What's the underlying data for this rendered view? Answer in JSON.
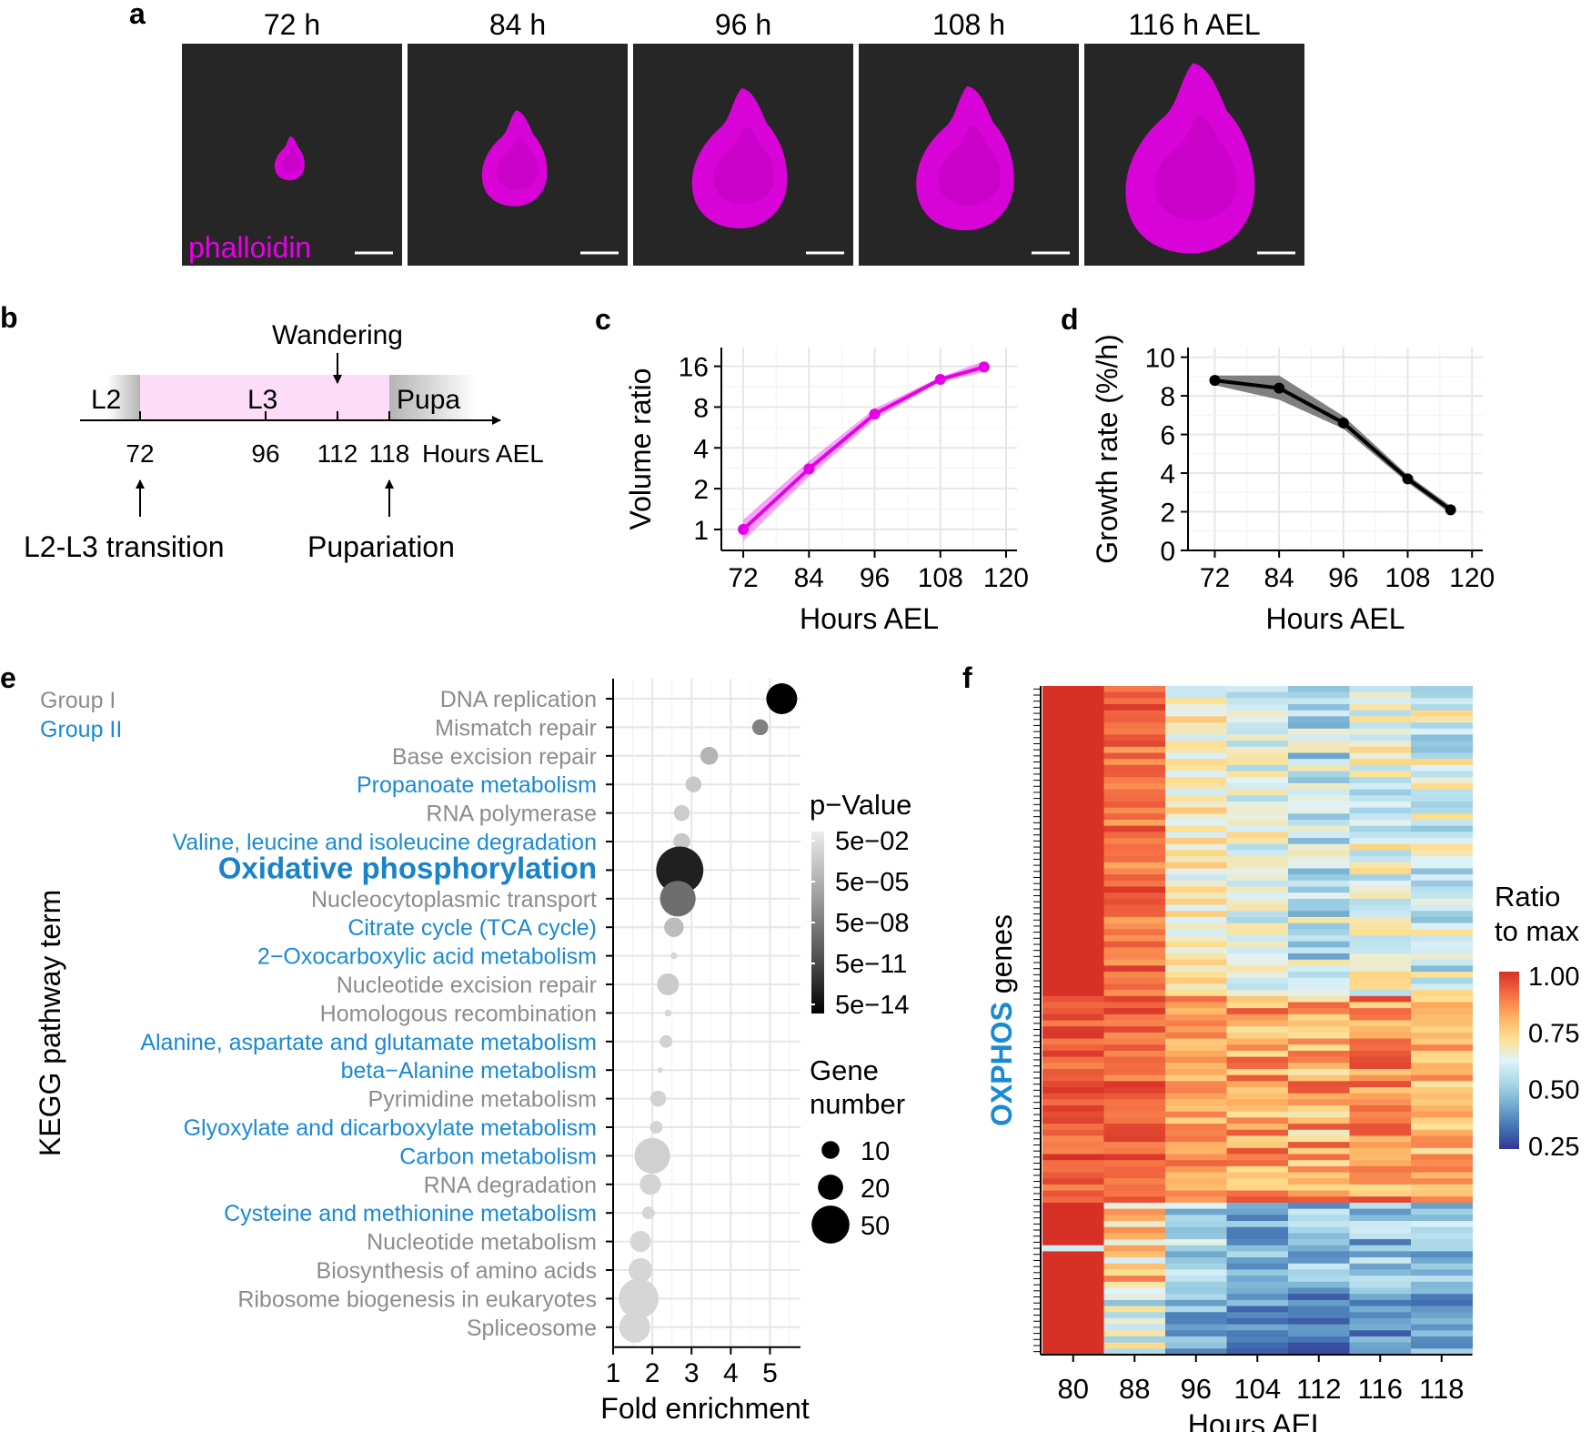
{
  "panel_a": {
    "letter": "a",
    "timepoints": [
      "72 h",
      "84 h",
      "96 h",
      "108 h",
      "116 h AEL"
    ],
    "stain_label": "phalloidin",
    "colors": {
      "stain": "#e600e6",
      "background": "#262626"
    }
  },
  "panel_b": {
    "letter": "b",
    "stages": [
      "L2",
      "L3",
      "Pupa"
    ],
    "wandering": "Wandering",
    "ticks": [
      "72",
      "96",
      "112",
      "118"
    ],
    "axis_label": "Hours AEL",
    "events": [
      "L2-L3 transition",
      "Pupariation"
    ],
    "colors": {
      "l3_band": "#fcdcf7"
    }
  },
  "panel_c": {
    "letter": "c",
    "chart_data": {
      "type": "line",
      "x": [
        72,
        84,
        96,
        108,
        116
      ],
      "y": [
        1,
        2.8,
        7.1,
        12.8,
        15.8
      ],
      "y_lower": [
        0.82,
        2.45,
        6.5,
        12.3,
        14.5
      ],
      "y_upper": [
        1.18,
        3.2,
        7.8,
        13.3,
        17.5
      ],
      "xlim": [
        68,
        122
      ],
      "ylim": [
        0.7,
        22
      ],
      "yscale": "log2",
      "xticks": [
        "72",
        "84",
        "96",
        "108",
        "120"
      ],
      "yticks": [
        "1",
        "2",
        "4",
        "8",
        "16"
      ],
      "xlabel": "Hours AEL",
      "ylabel": "Volume ratio",
      "color": "#e600e6"
    }
  },
  "panel_d": {
    "letter": "d",
    "chart_data": {
      "type": "line",
      "x": [
        72,
        84,
        96,
        108,
        116
      ],
      "y": [
        8.8,
        8.4,
        6.6,
        3.7,
        2.1
      ],
      "y_lower": [
        8.55,
        7.8,
        6.3,
        3.5,
        1.9
      ],
      "y_upper": [
        9.05,
        9.05,
        6.95,
        3.9,
        2.3
      ],
      "xlim": [
        67,
        122
      ],
      "ylim": [
        0,
        10.5
      ],
      "xticks": [
        "72",
        "84",
        "96",
        "108",
        "120"
      ],
      "yticks": [
        "0",
        "2",
        "4",
        "6",
        "8",
        "10"
      ],
      "xlabel": "Hours AEL",
      "ylabel": "Growth rate (%/h)",
      "color": "#000000"
    }
  },
  "panel_e": {
    "letter": "e",
    "legend_groups": [
      "Group I",
      "Group II"
    ],
    "chart_data": {
      "type": "scatter",
      "ylabel": "KEGG pathway term",
      "xlabel": "Fold enrichment",
      "xlim": [
        1,
        5.5
      ],
      "xticks": [
        "1",
        "2",
        "3",
        "4",
        "5"
      ],
      "terms": [
        {
          "name": "DNA replication",
          "group": 1,
          "fold": 5.3,
          "genes": 30,
          "shade": "#000000"
        },
        {
          "name": "Mismatch repair",
          "group": 1,
          "fold": 4.75,
          "genes": 8,
          "shade": "#808080"
        },
        {
          "name": "Base excision repair",
          "group": 1,
          "fold": 3.45,
          "genes": 10,
          "shade": "#b4b4b4"
        },
        {
          "name": "Propanoate metabolism",
          "group": 2,
          "fold": 3.05,
          "genes": 8,
          "shade": "#c8c8c8"
        },
        {
          "name": "RNA polymerase",
          "group": 1,
          "fold": 2.75,
          "genes": 8,
          "shade": "#cccccc"
        },
        {
          "name": "Valine, leucine and isoleucine degradation",
          "group": 2,
          "fold": 2.75,
          "genes": 9,
          "shade": "#c8c8c8"
        },
        {
          "name": "Oxidative phosphorylation",
          "group": 2,
          "fold": 2.7,
          "genes": 70,
          "shade": "#202020",
          "highlight": true
        },
        {
          "name": "Nucleocytoplasmic transport",
          "group": 1,
          "fold": 2.65,
          "genes": 40,
          "shade": "#6e6e6e"
        },
        {
          "name": "Citrate cycle (TCA cycle)",
          "group": 2,
          "fold": 2.55,
          "genes": 12,
          "shade": "#bcbcbc"
        },
        {
          "name": "2−Oxocarboxylic acid metabolism",
          "group": 2,
          "fold": 2.55,
          "genes": 1.5,
          "shade": "#d6d6d6"
        },
        {
          "name": "Nucleotide excision repair",
          "group": 1,
          "fold": 2.4,
          "genes": 15,
          "shade": "#cbcbcb"
        },
        {
          "name": "Homologous recombination",
          "group": 1,
          "fold": 2.4,
          "genes": 1.5,
          "shade": "#d6d6d6"
        },
        {
          "name": "Alanine, aspartate and glutamate metabolism",
          "group": 2,
          "fold": 2.35,
          "genes": 5,
          "shade": "#d2d2d2"
        },
        {
          "name": "beta−Alanine metabolism",
          "group": 2,
          "fold": 2.2,
          "genes": 1,
          "shade": "#d8d8d8"
        },
        {
          "name": "Pyrimidine metabolism",
          "group": 1,
          "fold": 2.15,
          "genes": 8,
          "shade": "#d2d2d2"
        },
        {
          "name": "Glyoxylate and dicarboxylate metabolism",
          "group": 2,
          "fold": 2.1,
          "genes": 5,
          "shade": "#d4d4d4"
        },
        {
          "name": "Carbon metabolism",
          "group": 2,
          "fold": 2.0,
          "genes": 40,
          "shade": "#d0d0d0"
        },
        {
          "name": "RNA degradation",
          "group": 1,
          "fold": 1.95,
          "genes": 14,
          "shade": "#d4d4d4"
        },
        {
          "name": "Cysteine and methionine metabolism",
          "group": 2,
          "fold": 1.9,
          "genes": 5,
          "shade": "#d6d6d6"
        },
        {
          "name": "Nucleotide metabolism",
          "group": 1,
          "fold": 1.7,
          "genes": 14,
          "shade": "#d6d6d6"
        },
        {
          "name": "Biosynthesis of amino acids",
          "group": 1,
          "fold": 1.7,
          "genes": 18,
          "shade": "#d6d6d6"
        },
        {
          "name": "Ribosome biogenesis in eukaryotes",
          "group": 1,
          "fold": 1.65,
          "genes": 50,
          "shade": "#d6d6d6"
        },
        {
          "name": "Spliceosome",
          "group": 1,
          "fold": 1.55,
          "genes": 30,
          "shade": "#d6d6d6"
        }
      ],
      "legend_pvalue_title": "p−Value",
      "legend_pvalue_labels": [
        "5e−02",
        "5e−05",
        "5e−08",
        "5e−11",
        "5e−14"
      ],
      "legend_size_title_1": "Gene",
      "legend_size_title_2": "number",
      "legend_size_labels": [
        "10",
        "20",
        "50"
      ],
      "legend_size_values": [
        10,
        20,
        50
      ]
    },
    "colors": {
      "group1": "#8c8c8c",
      "group2": "#1a8ad4",
      "highlight": "#1a82c8"
    }
  },
  "panel_f": {
    "letter": "f",
    "ylabel_highlight": "OXPHOS",
    "ylabel_rest": " genes",
    "chart_data": {
      "type": "heatmap",
      "columns": [
        "80",
        "88",
        "96",
        "104",
        "112",
        "116",
        "118"
      ],
      "xlabel": "Hours AEL",
      "n_genes": 110,
      "value_range": [
        0.25,
        1.0
      ],
      "legend_title_1": "Ratio",
      "legend_title_2": "to max",
      "legend_ticks": [
        "1.00",
        "0.75",
        "0.50",
        "0.25"
      ],
      "legend_tick_values": [
        1.0,
        0.75,
        0.5,
        0.25
      ],
      "colorscale": [
        "#313695",
        "#4575b4",
        "#74add1",
        "#abd9e9",
        "#e0f3f8",
        "#fee090",
        "#fdae61",
        "#f46d43",
        "#d73027"
      ]
    }
  }
}
